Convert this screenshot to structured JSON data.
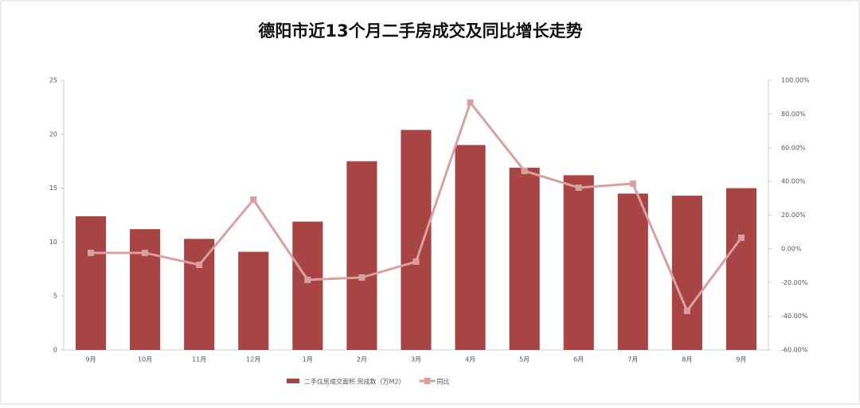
{
  "chart_data": {
    "type": "bar-line",
    "title": "德阳市近13个月二手房成交及同比增长走势",
    "categories": [
      "9月",
      "10月",
      "11月",
      "12月",
      "1月",
      "2月",
      "3月",
      "4月",
      "5月",
      "6月",
      "7月",
      "8月",
      "9月"
    ],
    "series": [
      {
        "name": "二手住房成交面积 完成数（万M2）",
        "color": "#a84444",
        "type": "bar",
        "values": [
          12.4,
          11.2,
          10.3,
          9.1,
          11.9,
          17.5,
          20.4,
          19.0,
          16.9,
          16.2,
          14.5,
          14.3,
          15.0
        ]
      },
      {
        "name": "同比",
        "color": "#d9a0a0",
        "type": "line",
        "axis": "y2",
        "values": [
          -2.4,
          -2.4,
          -9.5,
          29.2,
          -18.4,
          -17,
          -7.6,
          86.8,
          46.2,
          36.3,
          38.7,
          -36.8,
          6.6
        ]
      }
    ],
    "ylim": [
      0,
      25
    ],
    "yticks": [
      0,
      5,
      10,
      15,
      20,
      25
    ],
    "y2lim": [
      -60,
      100
    ],
    "y2ticks": [
      {
        "value": -60,
        "label": "-60.00%"
      },
      {
        "value": -40,
        "label": "-40.00%"
      },
      {
        "value": -20,
        "label": "-20.00%"
      },
      {
        "value": 0,
        "label": "0.00%"
      },
      {
        "value": 20,
        "label": "20.00%"
      },
      {
        "value": 40,
        "label": "40.00%"
      },
      {
        "value": 60,
        "label": "60.00%"
      },
      {
        "value": 80,
        "label": "80.00%"
      },
      {
        "value": 100,
        "label": "100.00%"
      }
    ]
  }
}
